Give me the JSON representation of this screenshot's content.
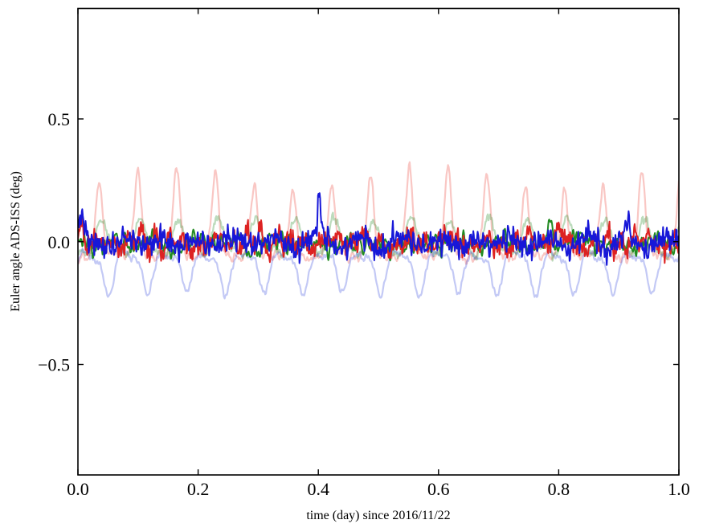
{
  "chart_data": {
    "type": "line",
    "title": "",
    "xlabel": "time (day) since 2016/11/22",
    "ylabel": "Euler angle ADS-ISS (deg)",
    "xlim": [
      0.0,
      1.0
    ],
    "ylim": [
      -0.95,
      0.95
    ],
    "xticks": {
      "values": [
        0.0,
        0.2,
        0.4,
        0.6,
        0.8,
        1.0
      ],
      "labels": [
        "0.0",
        "0.2",
        "0.4",
        "0.6",
        "0.8",
        "1.0"
      ]
    },
    "yticks": {
      "values": [
        -0.5,
        0.0,
        0.5
      ],
      "labels": [
        "−0.5",
        "0.0",
        "0.5"
      ]
    },
    "grid": false,
    "legend": false,
    "orbital_period_day": 0.0645,
    "series": [
      {
        "name": "light-red",
        "color": "rgba(235,80,70,0.32)",
        "width": 2.2,
        "description": "raw red Euler angle, periodic peaks to ~+0.28 deg each orbit, valleys ~-0.06",
        "model": {
          "base": -0.06,
          "n": 800,
          "components": [
            {
              "shape": "bump",
              "freq": 15.5,
              "phase": 0.4575,
              "amp": 0.32,
              "sharp": 3.4,
              "mod": {
                "freq": 2.3,
                "depth": 0.16,
                "phase": 0.9
              }
            }
          ],
          "noise": {
            "amp": 0.012,
            "seed": 11
          }
        }
      },
      {
        "name": "light-green",
        "color": "rgba(34,136,34,0.30)",
        "width": 2.2,
        "description": "raw green Euler angle, oscillates between ~-0.09 and ~+0.11 deg",
        "model": {
          "base": 0.005,
          "n": 800,
          "components": [
            {
              "shape": "sin",
              "freq": 15.5,
              "phase": 0.62,
              "amp": 0.062
            },
            {
              "shape": "sin",
              "freq": 31.0,
              "phase": 0.08,
              "amp": 0.028
            }
          ],
          "noise": {
            "amp": 0.011,
            "seed": 33
          }
        }
      },
      {
        "name": "light-blue",
        "color": "rgba(40,60,220,0.28)",
        "width": 2.2,
        "description": "raw blue Euler angle, stays negative, rounded dips to ~-0.21 deg, tops ~-0.04",
        "model": {
          "base": -0.045,
          "n": 800,
          "components": [
            {
              "shape": "bump",
              "freq": 15.5,
              "phase": 0.2075,
              "amp": -0.165,
              "sharp": 1.6
            },
            {
              "shape": "sin",
              "freq": 31.0,
              "phase": 0.0,
              "amp": 0.012
            }
          ],
          "noise": {
            "amp": 0.012,
            "seed": 22
          }
        }
      },
      {
        "name": "green",
        "color": "#228b22",
        "width": 2.0,
        "description": "filtered green Euler angle, noisy around 0, spike ~+0.12 at x=0.785",
        "model": {
          "base": -0.008,
          "n": 1100,
          "components": [
            {
              "shape": "sin",
              "freq": 15.5,
              "phase": 0.3,
              "amp": 0.014
            },
            {
              "shape": "sin",
              "freq": 46.5,
              "phase": 0.55,
              "amp": 0.007
            }
          ],
          "noise": {
            "amp": 0.024,
            "seed": 55
          },
          "spikes": [
            {
              "x": 0.27,
              "amp": 0.05,
              "w": 0.005
            },
            {
              "x": 0.52,
              "amp": -0.045,
              "w": 0.008
            },
            {
              "x": 0.785,
              "amp": 0.12,
              "w": 0.006
            }
          ]
        }
      },
      {
        "name": "red",
        "color": "#dd2222",
        "width": 2.0,
        "description": "filtered red Euler angle, noisy around 0 within ~±0.08 deg",
        "model": {
          "base": -0.005,
          "n": 1100,
          "components": [
            {
              "shape": "sin",
              "freq": 15.5,
              "phase": 0.7,
              "amp": 0.016
            },
            {
              "shape": "sin",
              "freq": 46.5,
              "phase": 0.2,
              "amp": 0.008
            }
          ],
          "noise": {
            "amp": 0.027,
            "seed": 44
          },
          "spikes": [
            {
              "x": 0.006,
              "amp": 0.1,
              "w": 0.006
            },
            {
              "x": 0.335,
              "amp": 0.07,
              "w": 0.004
            },
            {
              "x": 0.47,
              "amp": 0.05,
              "w": 0.005
            },
            {
              "x": 0.8,
              "amp": 0.06,
              "w": 0.006
            }
          ]
        }
      },
      {
        "name": "blue",
        "color": "#1717d8",
        "width": 2.0,
        "description": "filtered blue Euler angle, noisy around 0, sharp spike ~+0.15 at x=0.40",
        "model": {
          "base": -0.004,
          "n": 1100,
          "components": [
            {
              "shape": "sin",
              "freq": 15.5,
              "phase": 0.05,
              "amp": 0.018
            },
            {
              "shape": "sin",
              "freq": 46.5,
              "phase": 0.8,
              "amp": 0.008
            }
          ],
          "noise": {
            "amp": 0.026,
            "seed": 66
          },
          "spikes": [
            {
              "x": 0.004,
              "amp": 0.09,
              "w": 0.008
            },
            {
              "x": 0.3,
              "amp": 0.05,
              "w": 0.004
            },
            {
              "x": 0.402,
              "amp": 0.16,
              "w": 0.0045
            },
            {
              "x": 0.915,
              "amp": 0.065,
              "w": 0.005
            }
          ]
        }
      }
    ]
  }
}
